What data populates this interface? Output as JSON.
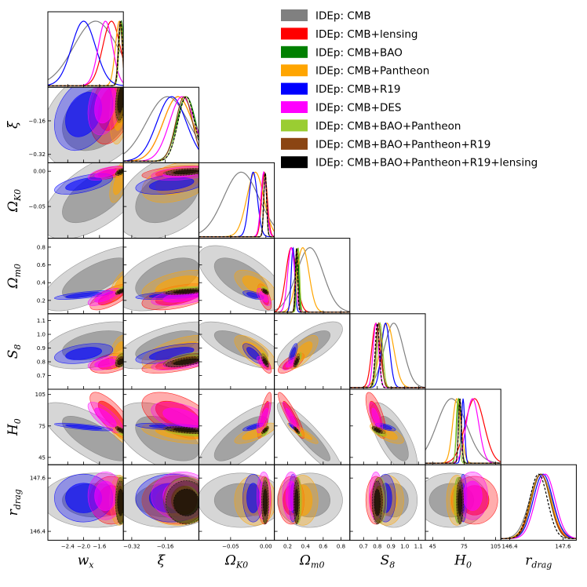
{
  "chart_data": {
    "type": "triangle",
    "title": "",
    "parameters": [
      {
        "key": "wx",
        "label": "w",
        "sub": "x",
        "range": [
          -2.9,
          -1.0
        ],
        "ticks": [
          -2.4,
          -2.0,
          -1.6
        ],
        "tick_labels": [
          "−2.4",
          "−2.0",
          "−1.6"
        ]
      },
      {
        "key": "xi",
        "label": "ξ",
        "sub": "",
        "range": [
          -0.36,
          0.0
        ],
        "ticks": [
          -0.32,
          -0.16
        ],
        "tick_labels": [
          "−0.32",
          "−0.16"
        ]
      },
      {
        "key": "omk",
        "label": "Ω",
        "sub": "K0",
        "range": [
          -0.095,
          0.012
        ],
        "ticks": [
          -0.05,
          0.0
        ],
        "tick_labels": [
          "−0.05",
          "0.00"
        ]
      },
      {
        "key": "omm",
        "label": "Ω",
        "sub": "m0",
        "range": [
          0.05,
          0.9
        ],
        "ticks": [
          0.2,
          0.4,
          0.6,
          0.8
        ],
        "tick_labels": [
          "0.2",
          "0.4",
          "0.6",
          "0.8"
        ]
      },
      {
        "key": "s8",
        "label": "S",
        "sub": "8",
        "range": [
          0.6,
          1.15
        ],
        "ticks": [
          0.7,
          0.8,
          0.9,
          1.0,
          1.1
        ],
        "tick_labels": [
          "0.7",
          "0.8",
          "0.9",
          "1.0",
          "1.1"
        ]
      },
      {
        "key": "h0",
        "label": "H",
        "sub": "0",
        "range": [
          38,
          110
        ],
        "ticks": [
          45,
          75,
          105
        ],
        "tick_labels": [
          "45",
          "75",
          "105"
        ]
      },
      {
        "key": "rd",
        "label": "r",
        "sub": "drag",
        "range": [
          146.2,
          147.9
        ],
        "ticks": [
          146.4,
          147.6
        ],
        "tick_labels": [
          "146.4",
          "147.6"
        ]
      }
    ],
    "series": [
      {
        "name": "IDEp: CMB",
        "color": "#808080",
        "dashed": false,
        "means": [
          -1.7,
          -0.15,
          -0.035,
          0.45,
          0.92,
          63,
          147.1
        ],
        "sds": [
          0.55,
          0.1,
          0.025,
          0.15,
          0.07,
          14,
          0.25
        ]
      },
      {
        "name": "IDEp: CMB+lensing",
        "color": "#ff0000",
        "dashed": false,
        "means": [
          -1.3,
          -0.1,
          -0.002,
          0.24,
          0.79,
          85,
          147.1
        ],
        "sds": [
          0.22,
          0.07,
          0.004,
          0.06,
          0.03,
          9,
          0.22
        ]
      },
      {
        "name": "IDEp: CMB+BAO",
        "color": "#008000",
        "dashed": false,
        "means": [
          -1.05,
          -0.06,
          -0.001,
          0.31,
          0.81,
          70,
          147.1
        ],
        "sds": [
          0.06,
          0.045,
          0.002,
          0.015,
          0.02,
          2,
          0.21
        ]
      },
      {
        "name": "IDEp: CMB+Pantheon",
        "color": "#ffa500",
        "dashed": false,
        "means": [
          -1.1,
          -0.1,
          -0.015,
          0.37,
          0.87,
          68,
          147.1
        ],
        "sds": [
          0.1,
          0.07,
          0.012,
          0.07,
          0.05,
          4,
          0.23
        ]
      },
      {
        "name": "IDEp: CMB+R19",
        "color": "#0000ff",
        "dashed": false,
        "means": [
          -2.0,
          -0.13,
          -0.018,
          0.26,
          0.86,
          74,
          147.15
        ],
        "sds": [
          0.3,
          0.07,
          0.006,
          0.02,
          0.03,
          1.5,
          0.22
        ]
      },
      {
        "name": "IDEp: CMB+DES",
        "color": "#ff00ff",
        "dashed": false,
        "means": [
          -1.45,
          -0.08,
          -0.003,
          0.24,
          0.79,
          83,
          147.2
        ],
        "sds": [
          0.18,
          0.06,
          0.004,
          0.04,
          0.02,
          6,
          0.22
        ]
      },
      {
        "name": "IDEp: CMB+BAO+Pantheon",
        "color": "#9acd32",
        "dashed": false,
        "means": [
          -1.06,
          -0.06,
          -0.001,
          0.32,
          0.82,
          69,
          147.1
        ],
        "sds": [
          0.05,
          0.04,
          0.002,
          0.015,
          0.02,
          1.5,
          0.21
        ]
      },
      {
        "name": "IDEp: CMB+BAO+Pantheon+R19",
        "color": "#8b4513",
        "dashed": false,
        "means": [
          -1.08,
          -0.07,
          -0.001,
          0.3,
          0.81,
          71,
          147.1
        ],
        "sds": [
          0.05,
          0.04,
          0.002,
          0.014,
          0.02,
          1.4,
          0.21
        ]
      },
      {
        "name": "IDEp: CMB+BAO+Pantheon+R19+lensing",
        "color": "#000000",
        "dashed": true,
        "means": [
          -1.07,
          -0.06,
          -0.001,
          0.3,
          0.8,
          71,
          147.05
        ],
        "sds": [
          0.05,
          0.04,
          0.002,
          0.012,
          0.015,
          1.3,
          0.2
        ]
      }
    ],
    "legend_location": "top-right"
  }
}
